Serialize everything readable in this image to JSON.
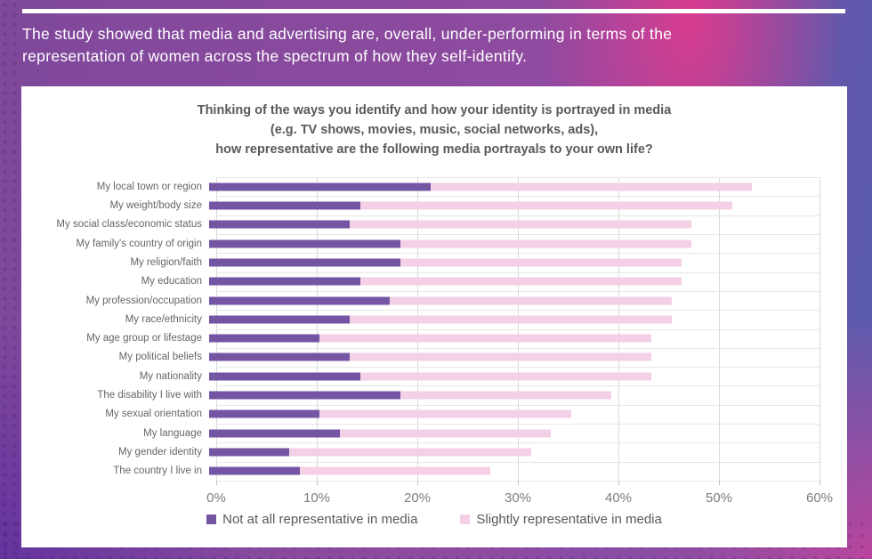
{
  "header": {
    "line1": "The study showed that media and advertising are, overall, under-performing in terms of the",
    "line2": "representation of women across the spectrum of how they self-identify."
  },
  "chart": {
    "title_line1": "Thinking of the ways you identify and how your identity is portrayed in media",
    "title_line2": "(e.g. TV shows, movies, music, social networks, ads),",
    "title_line3": "how representative are the following media portrayals to your own life?"
  },
  "chart_data": {
    "type": "bar",
    "orientation": "horizontal",
    "stacked": true,
    "title": "Thinking of the ways you identify and how your identity is portrayed in media (e.g. TV shows, movies, music, social networks, ads), how representative are the following media portrayals to your own life?",
    "categories": [
      "My local town or region",
      "My weight/body size",
      "My social class/economic status",
      "My family's country of origin",
      "My religion/faith",
      "My education",
      "My profession/occupation",
      "My race/ethnicity",
      "My age group or lifestage",
      "My political beliefs",
      "My nationality",
      "The disability I live with",
      "My sexual orientation",
      "My language",
      "My gender identity",
      "The country I live in"
    ],
    "series": [
      {
        "name": "Not at all representative in media",
        "color": "#7355a4",
        "values": [
          22,
          15,
          14,
          19,
          19,
          15,
          18,
          14,
          11,
          14,
          15,
          19,
          11,
          13,
          8,
          9
        ]
      },
      {
        "name": "Slightly representative in media",
        "color": "#f3d0e5",
        "values": [
          32,
          37,
          34,
          29,
          28,
          32,
          28,
          32,
          33,
          30,
          29,
          21,
          25,
          21,
          24,
          19
        ]
      }
    ],
    "xlim": [
      0,
      60
    ],
    "x_ticks": [
      "0%",
      "10%",
      "20%",
      "30%",
      "40%",
      "50%",
      "60%"
    ],
    "grid": "vertical-and-row-separators",
    "legend_position": "bottom",
    "colors": {
      "gridline": "#d9d9d9",
      "row_line": "#e7e7e7",
      "title_text": "#595959",
      "axis_text": "#7d7d7d",
      "category_text": "#666666",
      "card_bg": "#ffffff",
      "header_text": "#ffffff",
      "bg_purple": "#8e4b9f",
      "bg_blue_purple": "#5a5cad",
      "bg_magenta": "#d93c8f"
    }
  }
}
